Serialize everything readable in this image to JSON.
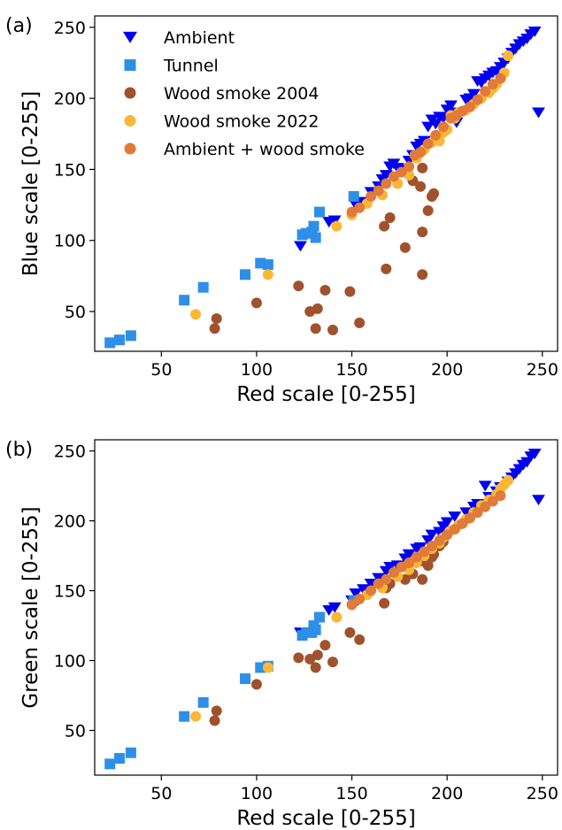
{
  "chart_data": [
    {
      "panel_label": "(a)",
      "type": "scatter",
      "xlabel": "Red scale [0-255]",
      "ylabel": "Blue scale [0-255]",
      "xlim": [
        15,
        258
      ],
      "ylim": [
        22,
        258
      ],
      "xticks": [
        50,
        100,
        150,
        200,
        250
      ],
      "yticks": [
        50,
        100,
        150,
        200,
        250
      ],
      "grid": false,
      "legend_position": "top-left",
      "series": [
        {
          "name": "Ambient",
          "marker": "triangle-down",
          "color": "#0000ee",
          "points": [
            [
              123,
              96
            ],
            [
              138,
              113
            ],
            [
              141,
              114
            ],
            [
              152,
              125
            ],
            [
              156,
              127
            ],
            [
              160,
              134
            ],
            [
              164,
              138
            ],
            [
              166,
              143
            ],
            [
              168,
              146
            ],
            [
              170,
              152
            ],
            [
              172,
              154
            ],
            [
              174,
              151
            ],
            [
              178,
              150
            ],
            [
              180,
              156
            ],
            [
              182,
              160
            ],
            [
              184,
              166
            ],
            [
              186,
              168
            ],
            [
              188,
              170
            ],
            [
              190,
              180
            ],
            [
              192,
              185
            ],
            [
              194,
              182
            ],
            [
              196,
              187
            ],
            [
              198,
              186
            ],
            [
              200,
              192
            ],
            [
              202,
              195
            ],
            [
              204,
              190
            ],
            [
              205,
              183
            ],
            [
              210,
              199
            ],
            [
              212,
              200
            ],
            [
              214,
              203
            ],
            [
              216,
              212
            ],
            [
              218,
              211
            ],
            [
              220,
              214
            ],
            [
              222,
              216
            ],
            [
              224,
              218
            ],
            [
              226,
              219
            ],
            [
              228,
              222
            ],
            [
              230,
              225
            ],
            [
              232,
              228
            ],
            [
              234,
              232
            ],
            [
              236,
              235
            ],
            [
              238,
              238
            ],
            [
              240,
              240
            ],
            [
              242,
              242
            ],
            [
              244,
              245
            ],
            [
              246,
              247
            ],
            [
              248,
              190
            ]
          ]
        },
        {
          "name": "Tunnel",
          "marker": "square",
          "color": "#2e8fe8",
          "points": [
            [
              23,
              28
            ],
            [
              28,
              30
            ],
            [
              34,
              33
            ],
            [
              62,
              58
            ],
            [
              72,
              67
            ],
            [
              94,
              76
            ],
            [
              102,
              84
            ],
            [
              106,
              83
            ],
            [
              124,
              104
            ],
            [
              126,
              105
            ],
            [
              129,
              106
            ],
            [
              130,
              110
            ],
            [
              131,
              102
            ],
            [
              133,
              120
            ],
            [
              151,
              131
            ]
          ]
        },
        {
          "name": "Wood smoke 2004",
          "marker": "circle",
          "color": "#a0522d",
          "points": [
            [
              78,
              38
            ],
            [
              79,
              45
            ],
            [
              100,
              56
            ],
            [
              122,
              68
            ],
            [
              128,
              50
            ],
            [
              131,
              38
            ],
            [
              132,
              52
            ],
            [
              136,
              65
            ],
            [
              140,
              37
            ],
            [
              149,
              64
            ],
            [
              154,
              42
            ],
            [
              167,
              110
            ],
            [
              168,
              80
            ],
            [
              170,
              116
            ],
            [
              178,
              95
            ],
            [
              182,
              142
            ],
            [
              186,
              138
            ],
            [
              187,
              106
            ],
            [
              187,
              76
            ],
            [
              190,
              121
            ],
            [
              192,
              131
            ],
            [
              193,
              133
            ],
            [
              187,
              151
            ]
          ]
        },
        {
          "name": "Wood smoke 2022",
          "marker": "circle",
          "color": "#fbb734",
          "points": [
            [
              68,
              48
            ],
            [
              106,
              76
            ],
            [
              142,
              110
            ],
            [
              150,
              118
            ],
            [
              158,
              126
            ],
            [
              166,
              132
            ],
            [
              174,
              140
            ],
            [
              180,
              146
            ],
            [
              184,
              158
            ],
            [
              188,
              164
            ],
            [
              192,
              169
            ],
            [
              196,
              170
            ],
            [
              198,
              176
            ],
            [
              200,
              178
            ],
            [
              202,
              188
            ],
            [
              204,
              186
            ],
            [
              206,
              190
            ],
            [
              210,
              192
            ],
            [
              214,
              196
            ],
            [
              218,
              200
            ],
            [
              222,
              204
            ],
            [
              224,
              207
            ],
            [
              226,
              210
            ],
            [
              228,
              214
            ],
            [
              230,
              218
            ],
            [
              232,
              230
            ]
          ]
        },
        {
          "name": "Ambient + wood smoke",
          "marker": "circle",
          "color": "#e07b39",
          "points": [
            [
              150,
              120
            ],
            [
              154,
              123
            ],
            [
              160,
              131
            ],
            [
              164,
              135
            ],
            [
              168,
              140
            ],
            [
              172,
              145
            ],
            [
              176,
              148
            ],
            [
              180,
              152
            ],
            [
              183,
              160
            ],
            [
              186,
              162
            ],
            [
              190,
              168
            ],
            [
              194,
              174
            ],
            [
              198,
              180
            ],
            [
              202,
              186
            ],
            [
              205,
              188
            ],
            [
              208,
              191
            ],
            [
              212,
              194
            ],
            [
              216,
              199
            ],
            [
              220,
              205
            ],
            [
              224,
              210
            ],
            [
              228,
              214
            ]
          ]
        }
      ]
    },
    {
      "panel_label": "(b)",
      "type": "scatter",
      "xlabel": "Red scale [0-255]",
      "ylabel": "Green scale [0-255]",
      "xlim": [
        15,
        258
      ],
      "ylim": [
        18,
        258
      ],
      "xticks": [
        50,
        100,
        150,
        200,
        250
      ],
      "yticks": [
        50,
        100,
        150,
        200,
        250
      ],
      "grid": false,
      "series": [
        {
          "name": "Ambient",
          "marker": "triangle-down",
          "color": "#0000ee",
          "points": [
            [
              123,
              120
            ],
            [
              138,
              136
            ],
            [
              141,
              138
            ],
            [
              150,
              143
            ],
            [
              152,
              148
            ],
            [
              156,
              151
            ],
            [
              160,
              155
            ],
            [
              164,
              159
            ],
            [
              168,
              164
            ],
            [
              170,
              167
            ],
            [
              174,
              168
            ],
            [
              178,
              173
            ],
            [
              180,
              176
            ],
            [
              184,
              180
            ],
            [
              186,
              181
            ],
            [
              190,
              186
            ],
            [
              192,
              190
            ],
            [
              196,
              192
            ],
            [
              198,
              196
            ],
            [
              200,
              199
            ],
            [
              204,
              203
            ],
            [
              210,
              206
            ],
            [
              214,
              210
            ],
            [
              216,
              212
            ],
            [
              220,
              225
            ],
            [
              222,
              217
            ],
            [
              226,
              221
            ],
            [
              228,
              224
            ],
            [
              232,
              228
            ],
            [
              234,
              231
            ],
            [
              236,
              234
            ],
            [
              238,
              237
            ],
            [
              240,
              240
            ],
            [
              242,
              242
            ],
            [
              244,
              246
            ],
            [
              246,
              248
            ],
            [
              248,
              215
            ]
          ]
        },
        {
          "name": "Tunnel",
          "marker": "square",
          "color": "#2e8fe8",
          "points": [
            [
              23,
              26
            ],
            [
              28,
              30
            ],
            [
              34,
              34
            ],
            [
              62,
              60
            ],
            [
              72,
              70
            ],
            [
              94,
              87
            ],
            [
              102,
              95
            ],
            [
              106,
              96
            ],
            [
              124,
              118
            ],
            [
              126,
              120
            ],
            [
              129,
              120
            ],
            [
              130,
              125
            ],
            [
              131,
              122
            ],
            [
              133,
              131
            ],
            [
              151,
              143
            ]
          ]
        },
        {
          "name": "Wood smoke 2004",
          "marker": "circle",
          "color": "#a0522d",
          "points": [
            [
              78,
              57
            ],
            [
              79,
              64
            ],
            [
              100,
              83
            ],
            [
              122,
              102
            ],
            [
              128,
              101
            ],
            [
              131,
              95
            ],
            [
              132,
              104
            ],
            [
              136,
              111
            ],
            [
              140,
              99
            ],
            [
              149,
              120
            ],
            [
              154,
              115
            ],
            [
              167,
              141
            ],
            [
              168,
              152
            ],
            [
              170,
              155
            ],
            [
              178,
              158
            ],
            [
              182,
              162
            ],
            [
              186,
              171
            ],
            [
              187,
              158
            ],
            [
              190,
              168
            ],
            [
              192,
              174
            ],
            [
              193,
              176
            ],
            [
              196,
              182
            ],
            [
              198,
              185
            ]
          ]
        },
        {
          "name": "Wood smoke 2022",
          "marker": "circle",
          "color": "#fbb734",
          "points": [
            [
              68,
              60
            ],
            [
              106,
              95
            ],
            [
              142,
              131
            ],
            [
              150,
              140
            ],
            [
              158,
              147
            ],
            [
              166,
              152
            ],
            [
              174,
              160
            ],
            [
              180,
              165
            ],
            [
              184,
              170
            ],
            [
              188,
              175
            ],
            [
              192,
              180
            ],
            [
              196,
              184
            ],
            [
              198,
              188
            ],
            [
              202,
              193
            ],
            [
              206,
              197
            ],
            [
              210,
              201
            ],
            [
              214,
              206
            ],
            [
              218,
              211
            ],
            [
              222,
              215
            ],
            [
              226,
              219
            ],
            [
              228,
              223
            ],
            [
              230,
              226
            ],
            [
              232,
              229
            ]
          ]
        },
        {
          "name": "Ambient + wood smoke",
          "marker": "circle",
          "color": "#e07b39",
          "points": [
            [
              150,
              140
            ],
            [
              154,
              144
            ],
            [
              160,
              150
            ],
            [
              164,
              155
            ],
            [
              168,
              158
            ],
            [
              172,
              163
            ],
            [
              176,
              167
            ],
            [
              180,
              170
            ],
            [
              184,
              174
            ],
            [
              188,
              178
            ],
            [
              192,
              182
            ],
            [
              196,
              186
            ],
            [
              200,
              190
            ],
            [
              204,
              194
            ],
            [
              208,
              198
            ],
            [
              212,
              202
            ],
            [
              216,
              206
            ],
            [
              220,
              210
            ],
            [
              224,
              214
            ],
            [
              228,
              218
            ]
          ]
        }
      ]
    }
  ]
}
